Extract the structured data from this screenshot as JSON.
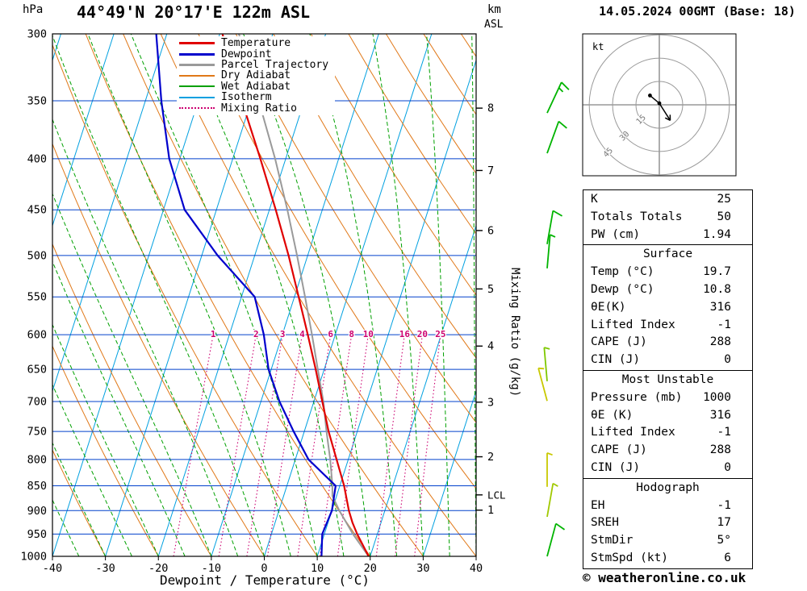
{
  "header": {
    "title": "44°49'N 20°17'E 122m ASL",
    "date_label": "14.05.2024 00GMT (Base: 18)"
  },
  "axes": {
    "pressure_unit": "hPa",
    "altitude_unit_line1": "km",
    "altitude_unit_line2": "ASL",
    "pressure_ticks": [
      300,
      350,
      400,
      450,
      500,
      550,
      600,
      650,
      700,
      750,
      800,
      850,
      900,
      950,
      1000
    ],
    "temp_ticks": [
      -40,
      -30,
      -20,
      -10,
      0,
      10,
      20,
      30,
      40
    ],
    "km_ticks": [
      8,
      7,
      6,
      5,
      4,
      3,
      2,
      1
    ],
    "lcl_label": "LCL",
    "xlabel": "Dewpoint / Temperature (°C)",
    "right_label": "Mixing Ratio (g/kg)"
  },
  "colors": {
    "grid": "#0040cc",
    "isotherm": "#00a0e0",
    "dry_adiabat": "#e07818",
    "wet_adiabat": "#00a000",
    "mixing_ratio": "#cc0070",
    "frame": "#000000"
  },
  "legend": [
    {
      "label": "Temperature",
      "color": "#e00000",
      "style": "solid",
      "weight": 3
    },
    {
      "label": "Dewpoint",
      "color": "#0000cc",
      "style": "solid",
      "weight": 3
    },
    {
      "label": "Parcel Trajectory",
      "color": "#9a9a9a",
      "style": "solid",
      "weight": 3
    },
    {
      "label": "Dry Adiabat",
      "color": "#e07818",
      "style": "solid",
      "weight": 2
    },
    {
      "label": "Wet Adiabat",
      "color": "#00a000",
      "style": "solid",
      "weight": 2
    },
    {
      "label": "Isotherm",
      "color": "#00a0e0",
      "style": "solid",
      "weight": 2
    },
    {
      "label": "Mixing Ratio",
      "color": "#cc0070",
      "style": "dotted",
      "weight": 2
    }
  ],
  "chart_data": {
    "type": "line",
    "title": "Skew-T log-P sounding",
    "xlabel": "Dewpoint / Temperature (°C)",
    "ylabel": "Pressure (hPa)",
    "y_scale": "log",
    "xlim": [
      -40,
      40
    ],
    "ylim": [
      1000,
      300
    ],
    "mixing_ratio_labels": [
      1,
      2,
      3,
      4,
      6,
      8,
      10,
      16,
      20,
      25
    ],
    "series": [
      {
        "name": "Temperature",
        "color": "#e00000",
        "width": 2.2,
        "pressure_hPa": [
          1000,
          950,
          925,
          900,
          850,
          800,
          750,
          700,
          650,
          600,
          550,
          500,
          450,
          400,
          350,
          300
        ],
        "temp_C": [
          19.7,
          16.2,
          14.6,
          13.2,
          10.8,
          7.8,
          4.6,
          1.6,
          -1.6,
          -5.2,
          -9.2,
          -13.6,
          -18.8,
          -24.8,
          -31.8,
          -39.5
        ]
      },
      {
        "name": "Dewpoint",
        "color": "#0000cc",
        "width": 2.2,
        "pressure_hPa": [
          1000,
          950,
          925,
          900,
          850,
          800,
          750,
          700,
          650,
          600,
          550,
          500,
          450,
          400,
          350,
          300
        ],
        "temp_C": [
          10.8,
          9.6,
          9.8,
          10.0,
          9.2,
          2.5,
          -2.0,
          -6.5,
          -10.5,
          -13.5,
          -17.5,
          -27.0,
          -36.0,
          -42.0,
          -47.0,
          -52.0
        ]
      },
      {
        "name": "Parcel Trajectory",
        "color": "#9a9a9a",
        "width": 2,
        "pressure_hPa": [
          1000,
          950,
          900,
          870,
          850,
          800,
          750,
          700,
          650,
          600,
          550,
          500,
          450,
          400,
          350,
          300
        ],
        "temp_C": [
          19.7,
          15.4,
          11.4,
          9.2,
          8.6,
          6.6,
          4.2,
          1.8,
          -1.2,
          -4.4,
          -8.0,
          -12.0,
          -16.6,
          -22.0,
          -28.6,
          -36.4
        ]
      }
    ],
    "wind_barbs": [
      {
        "pressure_hPa": 360,
        "speed_kt": 15,
        "dir_deg": 25,
        "color": "#00b400"
      },
      {
        "pressure_hPa": 395,
        "speed_kt": 10,
        "dir_deg": 20,
        "color": "#00b400"
      },
      {
        "pressure_hPa": 487,
        "speed_kt": 10,
        "dir_deg": 10,
        "color": "#00b400"
      },
      {
        "pressure_hPa": 515,
        "speed_kt": 5,
        "dir_deg": 5,
        "color": "#00b400"
      },
      {
        "pressure_hPa": 668,
        "speed_kt": 5,
        "dir_deg": 355,
        "color": "#7ec800"
      },
      {
        "pressure_hPa": 699,
        "speed_kt": 5,
        "dir_deg": 345,
        "color": "#c8c800"
      },
      {
        "pressure_hPa": 852,
        "speed_kt": 5,
        "dir_deg": 0,
        "color": "#c8c800"
      },
      {
        "pressure_hPa": 913,
        "speed_kt": 5,
        "dir_deg": 10,
        "color": "#a0c800"
      },
      {
        "pressure_hPa": 1000,
        "speed_kt": 10,
        "dir_deg": 15,
        "color": "#00b400"
      }
    ]
  },
  "hodograph": {
    "unit": "kt",
    "rings_kt": [
      15,
      30,
      45
    ],
    "trace_kt": [
      [
        -6,
        6
      ],
      [
        0,
        1
      ],
      [
        7,
        -10
      ]
    ]
  },
  "stats": {
    "sections": [
      {
        "header": null,
        "rows": [
          [
            "K",
            "25"
          ],
          [
            "Totals Totals",
            "50"
          ],
          [
            "PW (cm)",
            "1.94"
          ]
        ]
      },
      {
        "header": "Surface",
        "rows": [
          [
            "Temp (°C)",
            "19.7"
          ],
          [
            "Dewp (°C)",
            "10.8"
          ],
          [
            "θE(K)",
            "316"
          ],
          [
            "Lifted Index",
            "-1"
          ],
          [
            "CAPE (J)",
            "288"
          ],
          [
            "CIN (J)",
            "0"
          ]
        ]
      },
      {
        "header": "Most Unstable",
        "rows": [
          [
            "Pressure (mb)",
            "1000"
          ],
          [
            "θE (K)",
            "316"
          ],
          [
            "Lifted Index",
            "-1"
          ],
          [
            "CAPE (J)",
            "288"
          ],
          [
            "CIN (J)",
            "0"
          ]
        ]
      },
      {
        "header": "Hodograph",
        "rows": [
          [
            "EH",
            "-1"
          ],
          [
            "SREH",
            "17"
          ],
          [
            "StmDir",
            "5°"
          ],
          [
            "StmSpd (kt)",
            "6"
          ]
        ]
      }
    ]
  },
  "footer": {
    "copyright": "© weatheronline.co.uk"
  }
}
